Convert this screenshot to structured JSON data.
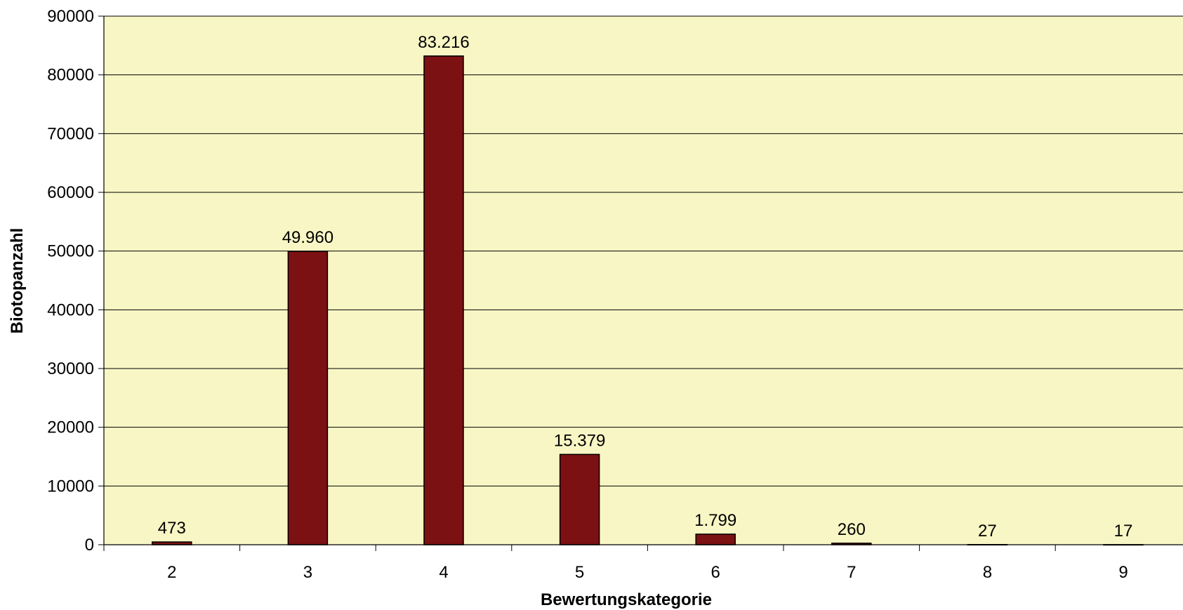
{
  "chart_data": {
    "type": "bar",
    "categories": [
      "2",
      "3",
      "4",
      "5",
      "6",
      "7",
      "8",
      "9"
    ],
    "values": [
      473,
      49960,
      83216,
      15379,
      1799,
      260,
      27,
      17
    ],
    "data_labels": [
      "473",
      "49.960",
      "83.216",
      "15.379",
      "1.799",
      "260",
      "27",
      "17"
    ],
    "xlabel": "Bewertungskategorie",
    "ylabel": "Biotopanzahl",
    "ylim": [
      0,
      90000
    ],
    "yticks": [
      0,
      10000,
      20000,
      30000,
      40000,
      50000,
      60000,
      70000,
      80000,
      90000
    ],
    "ytick_labels": [
      "0",
      "10000",
      "20000",
      "30000",
      "40000",
      "50000",
      "60000",
      "70000",
      "80000",
      "90000"
    ],
    "grid": true,
    "legend": "none",
    "colors": {
      "plot_background": "#f8f6c4",
      "bar_fill": "#7b1113",
      "bar_stroke": "#000000",
      "gridline": "#000000"
    }
  }
}
